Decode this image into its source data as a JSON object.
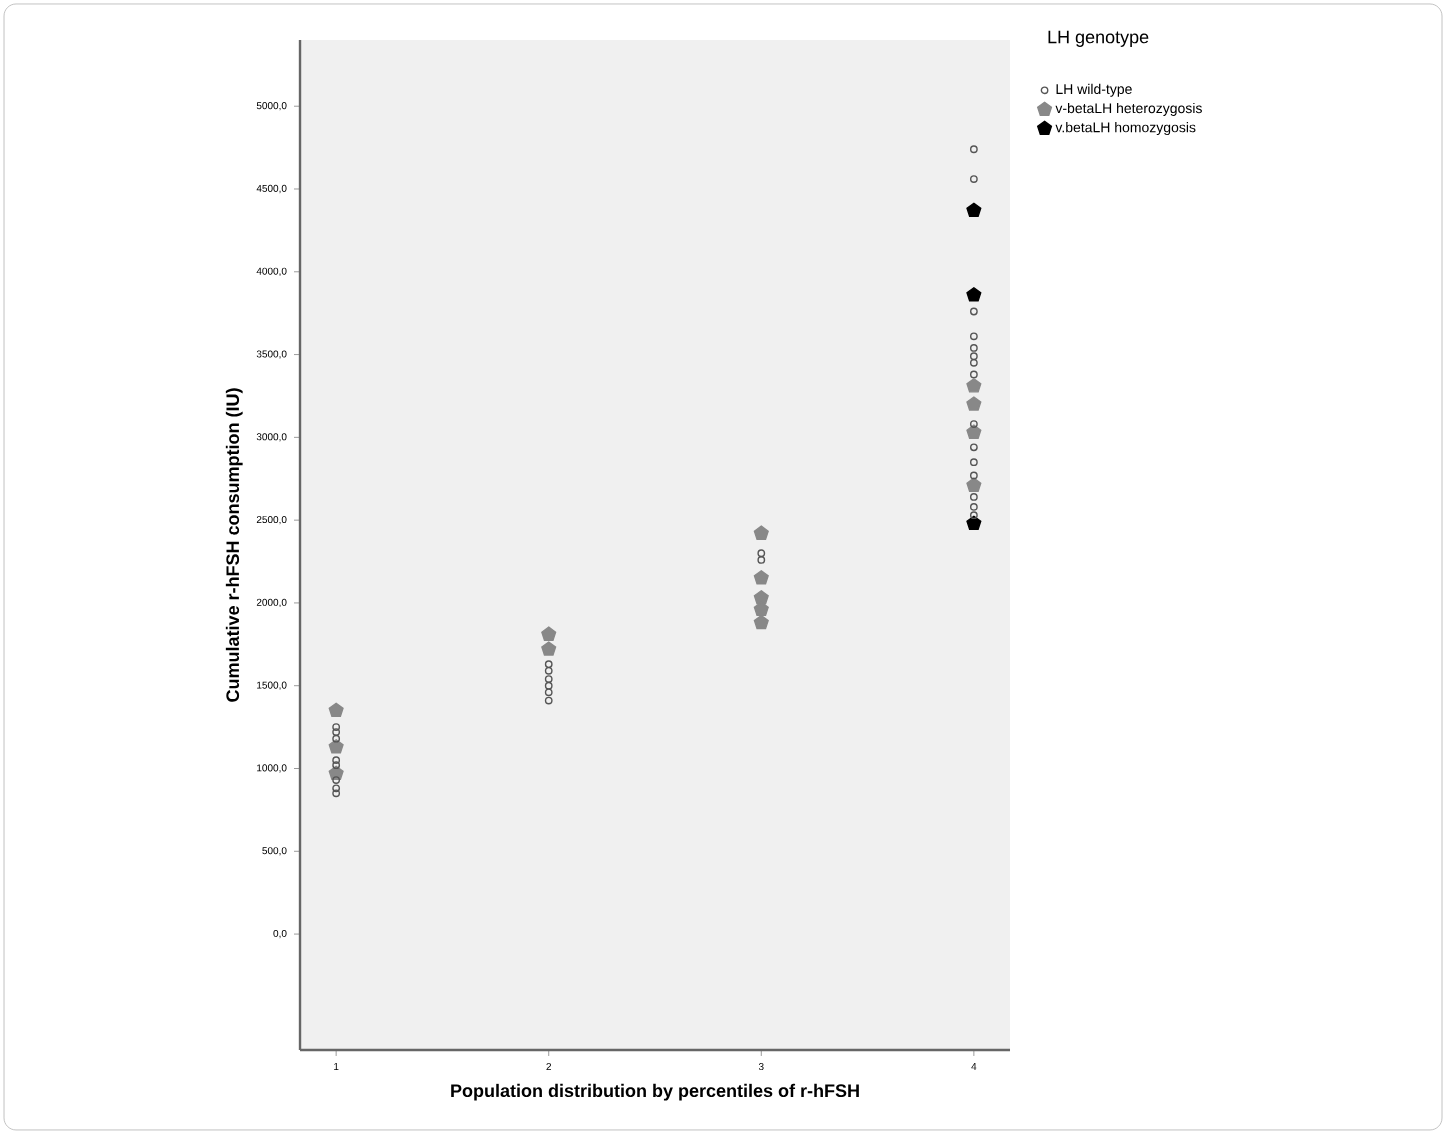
{
  "chart_data": {
    "type": "scatter",
    "xlabel": "Population distribution by percentiles of r-hFSH",
    "ylabel": "Cumulative r-hFSH consumption (IU)",
    "legend_title": "LH genotype",
    "legend": "top right",
    "grid": false,
    "xlim": [
      0.83,
      4.17
    ],
    "xticks": [
      1,
      2,
      3,
      4
    ],
    "ylim": [
      -700,
      5400
    ],
    "yticks": [
      {
        "value": 0,
        "label": "0,0"
      },
      {
        "value": 500,
        "label": "500,0"
      },
      {
        "value": 1000,
        "label": "1000,0"
      },
      {
        "value": 1500,
        "label": "1500,0"
      },
      {
        "value": 2000,
        "label": "2000,0"
      },
      {
        "value": 2500,
        "label": "2500,0"
      },
      {
        "value": 3000,
        "label": "3000,0"
      },
      {
        "value": 3500,
        "label": "3500,0"
      },
      {
        "value": 4000,
        "label": "4000,0"
      },
      {
        "value": 4500,
        "label": "4500,0"
      },
      {
        "value": 5000,
        "label": "5000,0"
      }
    ],
    "series": [
      {
        "name": "LH wild-type",
        "color": "#555555",
        "marker": "circle",
        "x": [
          1,
          1,
          1,
          1,
          1,
          1,
          1,
          1,
          2,
          2,
          2,
          2,
          2,
          2,
          3,
          3,
          4,
          4,
          4,
          4,
          4,
          4,
          4,
          4,
          4,
          4,
          4,
          4,
          4,
          4,
          4
        ],
        "values": [
          1250,
          1220,
          1180,
          1050,
          1020,
          930,
          880,
          850,
          1630,
          1590,
          1540,
          1500,
          1460,
          1410,
          2300,
          2260,
          4740,
          4560,
          3760,
          3610,
          3540,
          3490,
          3450,
          3380,
          3080,
          2940,
          2850,
          2770,
          2640,
          2580,
          2530
        ]
      },
      {
        "name": "v-betaLH heterozygosis",
        "color": "#888888",
        "x": [
          1,
          1,
          1,
          2,
          2,
          3,
          3,
          3,
          3,
          3,
          4,
          4,
          4,
          4
        ],
        "values": [
          1350,
          1130,
          970,
          1810,
          1720,
          2420,
          2150,
          2030,
          1960,
          1880,
          3310,
          3200,
          3030,
          2710
        ]
      },
      {
        "name": "v.betaLH homozygosis",
        "color": "#000000",
        "x": [
          4,
          4,
          4
        ],
        "values": [
          4370,
          3860,
          2480
        ]
      }
    ]
  }
}
